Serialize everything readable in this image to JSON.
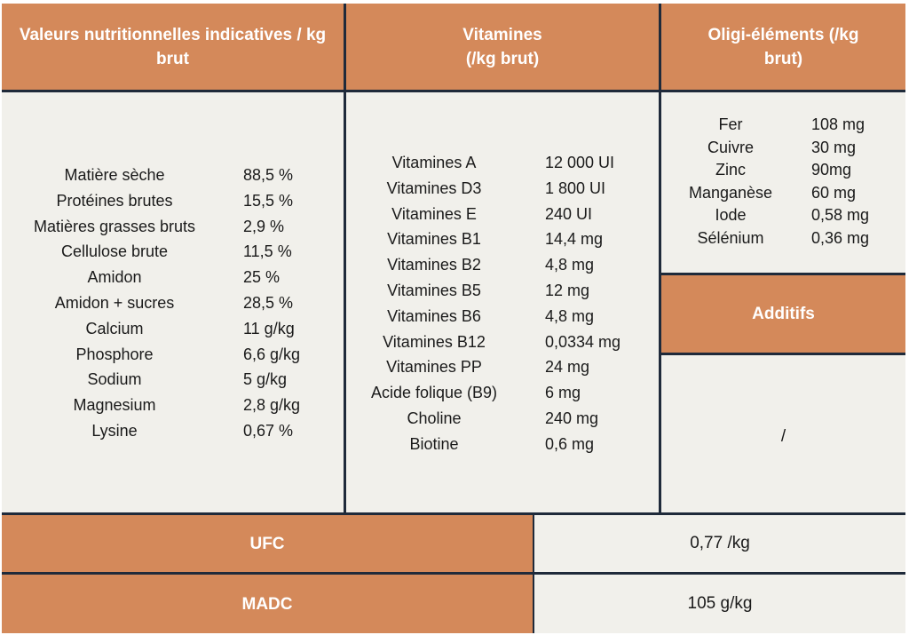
{
  "headers": {
    "valeurs": "Valeurs nutritionnelles indicatives / kg brut",
    "vitamines_line1": "Vitamines",
    "vitamines_line2": "(/kg brut)",
    "oligo_line1": "Oligi-éléments (/kg",
    "oligo_line2": "brut)",
    "additifs": "Additifs"
  },
  "valeurs": [
    {
      "label": "Matière sèche",
      "value": "88,5 %"
    },
    {
      "label": "Protéines brutes",
      "value": "15,5 %"
    },
    {
      "label": "Matières grasses bruts",
      "value": "2,9 %"
    },
    {
      "label": "Cellulose brute",
      "value": "11,5 %"
    },
    {
      "label": "Amidon",
      "value": "25 %"
    },
    {
      "label": "Amidon + sucres",
      "value": "28,5 %"
    },
    {
      "label": "Calcium",
      "value": "11 g/kg"
    },
    {
      "label": "Phosphore",
      "value": "6,6 g/kg"
    },
    {
      "label": "Sodium",
      "value": "5 g/kg"
    },
    {
      "label": "Magnesium",
      "value": "2,8 g/kg"
    },
    {
      "label": "Lysine",
      "value": "0,67 %"
    }
  ],
  "vitamines": [
    {
      "label": "Vitamines A",
      "value": "12 000 UI"
    },
    {
      "label": "Vitamines D3",
      "value": "1 800 UI"
    },
    {
      "label": "Vitamines E",
      "value": "240 UI"
    },
    {
      "label": "Vitamines B1",
      "value": "14,4 mg"
    },
    {
      "label": "Vitamines B2",
      "value": "4,8 mg"
    },
    {
      "label": "Vitamines B5",
      "value": "12 mg"
    },
    {
      "label": "Vitamines B6",
      "value": "4,8 mg"
    },
    {
      "label": "Vitamines B12",
      "value": "0,0334 mg"
    },
    {
      "label": "Vitamines PP",
      "value": "24 mg"
    },
    {
      "label": "Acide folique (B9)",
      "value": "6 mg"
    },
    {
      "label": "Choline",
      "value": "240 mg"
    },
    {
      "label": "Biotine",
      "value": "0,6 mg"
    }
  ],
  "oligo": [
    {
      "label": "Fer",
      "value": "108 mg"
    },
    {
      "label": "Cuivre",
      "value": "30 mg"
    },
    {
      "label": "Zinc",
      "value": "90mg"
    },
    {
      "label": "Manganèse",
      "value": "60 mg"
    },
    {
      "label": "Iode",
      "value": "0,58 mg"
    },
    {
      "label": "Sélénium",
      "value": "0,36 mg"
    }
  ],
  "additifs_value": "/",
  "ufc": {
    "label": "UFC",
    "value": "0,77 /kg"
  },
  "madc": {
    "label": "MADC",
    "value": "105 g/kg"
  },
  "colors": {
    "header_bg": "#d4895a",
    "body_bg": "#f1f0eb",
    "border": "#1f2a3a"
  }
}
